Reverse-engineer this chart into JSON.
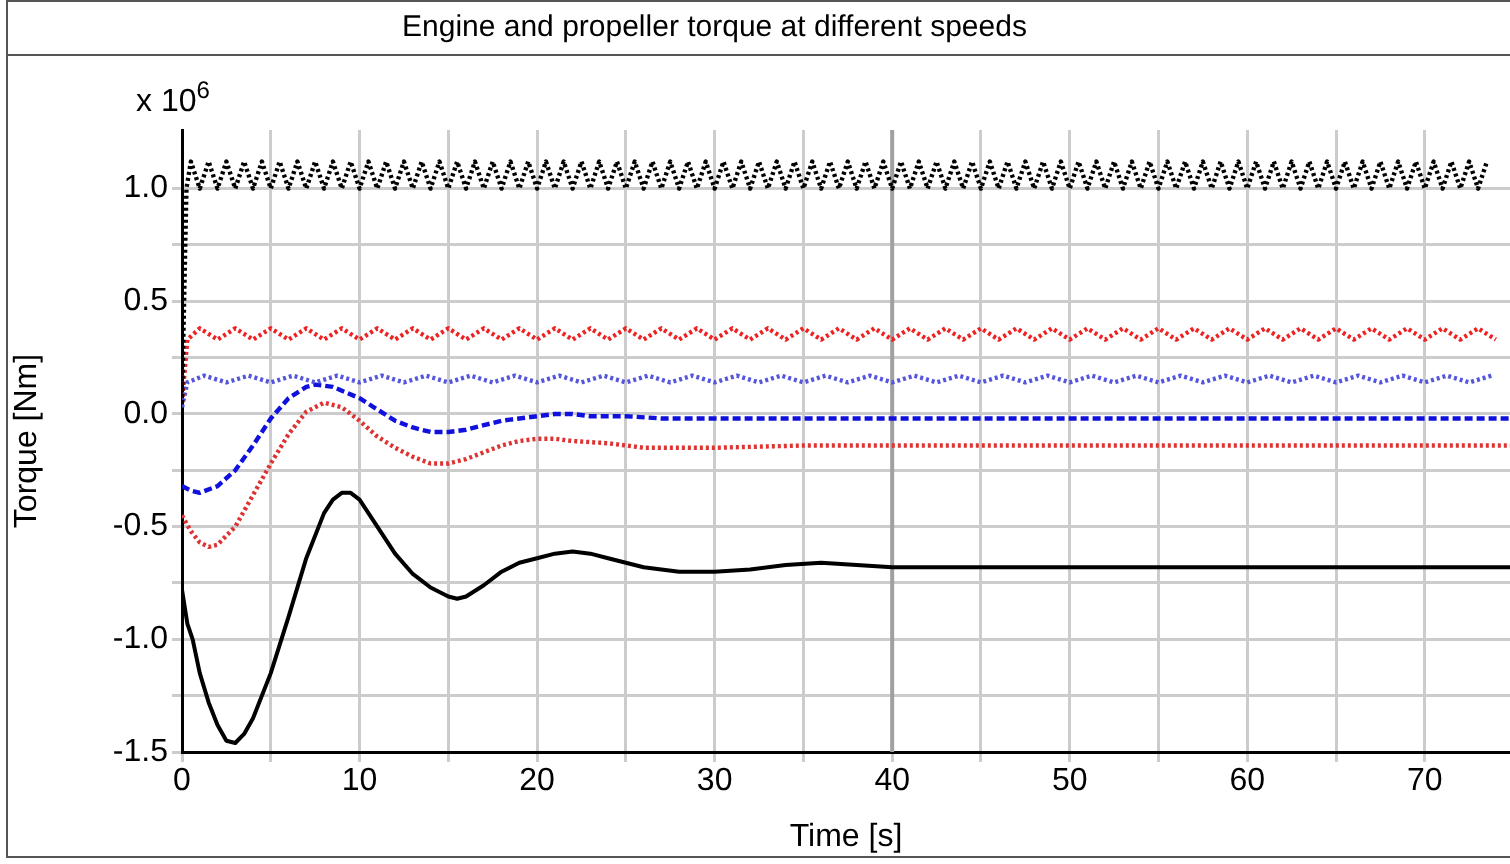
{
  "chart_data": {
    "type": "line",
    "title": "Engine and propeller torque at different speeds",
    "xlabel": "Time [s]",
    "ylabel": "Torque [Nm]",
    "annotations": [
      "x 10$^{6}$"
    ],
    "xlim": [
      0,
      74.8
    ],
    "xticks": [
      0,
      {
        "value": 5,
        "label": null
      },
      10,
      {
        "value": 15,
        "label": null
      },
      20,
      {
        "value": 25,
        "label": null
      },
      30,
      {
        "value": 35,
        "label": null
      },
      40,
      {
        "value": 45,
        "label": null
      },
      50,
      {
        "value": 55,
        "label": null
      },
      60,
      {
        "value": 65,
        "label": null
      },
      70
    ],
    "ylim": [
      -1.5,
      1.26
    ],
    "yticks": [
      {
        "value": -1.5,
        "label": "-1.5"
      },
      {
        "value": -1.25,
        "label": null
      },
      {
        "value": -1.0,
        "label": "-1.0"
      },
      {
        "value": -0.75,
        "label": null
      },
      {
        "value": -0.5,
        "label": "-0.5"
      },
      {
        "value": -0.25,
        "label": null
      },
      {
        "value": 0,
        "label": "0.0"
      },
      {
        "value": 0.25,
        "label": null
      },
      {
        "value": 0.5,
        "label": "0.5"
      },
      {
        "value": 0.75,
        "label": null
      },
      {
        "value": 1.0,
        "label": "1.0"
      }
    ],
    "grid": true,
    "legend": false,
    "marker": "none",
    "ref_lines": [
      {
        "axis": "x",
        "value": 40,
        "color": "#a0a0a0"
      }
    ],
    "series": [
      {
        "color": "#000000",
        "line_style": "dotted",
        "x": [
          0,
          0.25,
          0.5,
          1,
          1.5,
          2,
          2.5,
          3,
          3.5,
          4,
          4.5,
          5,
          5.5,
          6,
          6.5,
          7,
          7.5,
          8,
          8.5,
          9,
          9.5,
          10,
          10.5,
          11,
          11.5,
          12,
          12.5,
          13,
          13.5,
          14,
          14.5,
          15,
          15.5,
          16,
          16.5,
          17,
          17.5,
          18,
          18.5,
          19,
          19.5,
          20,
          20.5,
          21,
          21.5,
          22,
          22.5,
          23,
          23.5,
          24,
          24.5,
          25,
          25.5,
          26,
          26.5,
          27,
          27.5,
          28,
          28.5,
          29,
          29.5,
          30,
          30.5,
          31,
          31.5,
          32,
          32.5,
          33,
          33.5,
          34,
          34.5,
          35,
          35.5,
          36,
          36.5,
          37,
          37.5,
          38,
          38.5,
          39,
          39.5,
          40,
          40.5,
          41,
          41.5,
          42,
          42.5,
          43,
          43.5,
          44,
          44.5,
          45,
          45.5,
          46,
          46.5,
          47,
          47.5,
          48,
          48.5,
          49,
          49.5,
          50,
          50.5,
          51,
          51.5,
          52,
          52.5,
          53,
          53.5,
          54,
          54.5,
          55,
          55.5,
          56,
          56.5,
          57,
          57.5,
          58,
          58.5,
          59,
          59.5,
          60,
          60.5,
          61,
          61.5,
          62,
          62.5,
          63,
          63.5,
          64,
          64.5,
          65,
          65.5,
          66,
          66.5,
          67,
          67.5,
          68,
          68.5,
          69,
          69.5,
          70,
          70.5,
          71,
          71.5,
          72,
          72.5,
          73,
          73.5
        ],
        "values": [
          0.05,
          1.0,
          1.12,
          1.0,
          1.12,
          1.0,
          1.12,
          1.0,
          1.12,
          1.0,
          1.12,
          1.0,
          1.12,
          1.0,
          1.12,
          1.0,
          1.12,
          1.0,
          1.12,
          1.0,
          1.12,
          1.0,
          1.12,
          1.0,
          1.12,
          1.0,
          1.12,
          1.0,
          1.12,
          1.0,
          1.12,
          1.0,
          1.12,
          1.0,
          1.12,
          1.0,
          1.12,
          1.0,
          1.12,
          1.0,
          1.12,
          1.0,
          1.12,
          1.0,
          1.12,
          1.0,
          1.12,
          1.0,
          1.12,
          1.0,
          1.12,
          1.0,
          1.12,
          1.0,
          1.12,
          1.0,
          1.12,
          1.0,
          1.12,
          1.0,
          1.12,
          1.0,
          1.12,
          1.0,
          1.12,
          1.0,
          1.12,
          1.0,
          1.12,
          1.0,
          1.12,
          1.0,
          1.12,
          1.0,
          1.12,
          1.0,
          1.12,
          1.0,
          1.12,
          1.0,
          1.12,
          1.0,
          1.12,
          1.0,
          1.12,
          1.0,
          1.12,
          1.0,
          1.12,
          1.0,
          1.12,
          1.0,
          1.12,
          1.0,
          1.12,
          1.0,
          1.12,
          1.0,
          1.12,
          1.0,
          1.12,
          1.0,
          1.12,
          1.0,
          1.12,
          1.0,
          1.12,
          1.0,
          1.12,
          1.0,
          1.12,
          1.0,
          1.12,
          1.0,
          1.12,
          1.0,
          1.12,
          1.0,
          1.12,
          1.0,
          1.12,
          1.0,
          1.12,
          1.0,
          1.12,
          1.0,
          1.12,
          1.0,
          1.12,
          1.0,
          1.12,
          1.0,
          1.12,
          1.0,
          1.12,
          1.0,
          1.12,
          1.0,
          1.12,
          1.0,
          1.12,
          1.0,
          1.12,
          1.0,
          1.12,
          1.0,
          1.12,
          1.0,
          1.12
        ]
      },
      {
        "color": "#ee2222",
        "line_style": "dotted",
        "x": [
          0,
          0.3,
          1,
          2,
          3,
          4,
          5,
          6,
          7,
          8,
          9,
          10,
          11,
          12,
          13,
          14,
          15,
          16,
          17,
          18,
          19,
          20,
          21,
          22,
          23,
          24,
          25,
          26,
          27,
          28,
          29,
          30,
          31,
          32,
          33,
          34,
          35,
          36,
          37,
          38,
          39,
          40,
          41,
          42,
          43,
          44,
          45,
          46,
          47,
          48,
          49,
          50,
          51,
          52,
          53,
          54,
          55,
          56,
          57,
          58,
          59,
          60,
          61,
          62,
          63,
          64,
          65,
          66,
          67,
          68,
          69,
          70,
          71,
          72,
          73,
          74
        ],
        "values": [
          0.05,
          0.33,
          0.38,
          0.33,
          0.38,
          0.33,
          0.38,
          0.33,
          0.38,
          0.33,
          0.38,
          0.33,
          0.38,
          0.33,
          0.38,
          0.33,
          0.38,
          0.33,
          0.38,
          0.33,
          0.38,
          0.33,
          0.38,
          0.33,
          0.38,
          0.33,
          0.38,
          0.33,
          0.38,
          0.33,
          0.38,
          0.33,
          0.38,
          0.33,
          0.38,
          0.33,
          0.38,
          0.33,
          0.38,
          0.33,
          0.38,
          0.33,
          0.38,
          0.33,
          0.38,
          0.33,
          0.38,
          0.33,
          0.38,
          0.33,
          0.38,
          0.33,
          0.38,
          0.33,
          0.38,
          0.33,
          0.38,
          0.33,
          0.38,
          0.33,
          0.38,
          0.33,
          0.38,
          0.33,
          0.38,
          0.33,
          0.38,
          0.33,
          0.38,
          0.33,
          0.38,
          0.33,
          0.38,
          0.33,
          0.38,
          0.33
        ]
      },
      {
        "color": "#5555dd",
        "line_style": "dotted",
        "x": [
          0,
          0.3,
          1.25,
          2.5,
          3.75,
          5,
          6.25,
          7.5,
          8.75,
          10,
          11.25,
          12.5,
          13.75,
          15,
          16.25,
          17.5,
          18.75,
          20,
          21.25,
          22.5,
          23.75,
          25,
          26.25,
          27.5,
          28.75,
          30,
          31.25,
          32.5,
          33.75,
          35,
          36.25,
          37.5,
          38.75,
          40,
          41.25,
          42.5,
          43.75,
          45,
          46.25,
          47.5,
          48.75,
          50,
          51.25,
          52.5,
          53.75,
          55,
          56.25,
          57.5,
          58.75,
          60,
          61.25,
          62.5,
          63.75,
          65,
          66.25,
          67.5,
          68.75,
          70,
          71.25,
          72.5,
          73.75
        ],
        "values": [
          0.03,
          0.14,
          0.17,
          0.14,
          0.17,
          0.14,
          0.17,
          0.14,
          0.17,
          0.14,
          0.17,
          0.14,
          0.17,
          0.14,
          0.17,
          0.14,
          0.17,
          0.14,
          0.17,
          0.14,
          0.17,
          0.14,
          0.17,
          0.14,
          0.17,
          0.14,
          0.17,
          0.14,
          0.17,
          0.14,
          0.17,
          0.14,
          0.17,
          0.14,
          0.17,
          0.14,
          0.17,
          0.14,
          0.17,
          0.14,
          0.17,
          0.14,
          0.17,
          0.14,
          0.17,
          0.14,
          0.17,
          0.14,
          0.17,
          0.14,
          0.17,
          0.14,
          0.17,
          0.14,
          0.17,
          0.14,
          0.17,
          0.14,
          0.17,
          0.14,
          0.17
        ]
      },
      {
        "color": "#1111dd",
        "line_style": "dashed",
        "x": [
          0,
          0.5,
          1,
          2,
          3,
          4,
          5,
          6,
          7,
          7.5,
          8.5,
          10,
          11,
          12,
          13,
          14,
          15,
          16,
          17,
          18,
          19,
          20,
          21,
          22,
          23,
          25,
          27,
          28,
          30,
          35,
          40,
          45,
          50,
          55,
          60,
          65,
          70,
          74.8
        ],
        "values": [
          -0.32,
          -0.34,
          -0.35,
          -0.32,
          -0.25,
          -0.14,
          -0.02,
          0.07,
          0.12,
          0.13,
          0.12,
          0.07,
          0.02,
          -0.03,
          -0.06,
          -0.08,
          -0.08,
          -0.07,
          -0.05,
          -0.03,
          -0.02,
          -0.01,
          0.0,
          0.0,
          -0.01,
          -0.01,
          -0.02,
          -0.02,
          -0.02,
          -0.02,
          -0.02,
          -0.02,
          -0.02,
          -0.02,
          -0.02,
          -0.02,
          -0.02,
          -0.02
        ]
      },
      {
        "color": "#dd3333",
        "line_style": "dotted",
        "x": [
          0,
          0.5,
          1,
          1.5,
          2,
          3,
          4,
          5,
          6,
          7,
          8,
          9,
          10,
          11,
          12,
          13,
          14,
          15,
          16,
          17,
          18,
          19,
          20,
          21,
          22,
          24,
          26,
          28,
          30,
          35,
          40,
          45,
          50,
          55,
          60,
          65,
          70,
          74.8
        ],
        "values": [
          -0.45,
          -0.52,
          -0.57,
          -0.59,
          -0.58,
          -0.5,
          -0.36,
          -0.22,
          -0.09,
          0.01,
          0.05,
          0.03,
          -0.03,
          -0.1,
          -0.15,
          -0.19,
          -0.22,
          -0.22,
          -0.2,
          -0.17,
          -0.14,
          -0.12,
          -0.11,
          -0.11,
          -0.12,
          -0.13,
          -0.15,
          -0.15,
          -0.15,
          -0.14,
          -0.14,
          -0.14,
          -0.14,
          -0.14,
          -0.14,
          -0.14,
          -0.14,
          -0.14
        ]
      },
      {
        "color": "#000000",
        "line_style": "solid",
        "x": [
          0,
          0.3,
          0.6,
          1,
          1.5,
          2,
          2.5,
          3,
          3.5,
          4,
          5,
          6,
          7,
          8,
          8.5,
          9,
          9.5,
          10,
          11,
          12,
          13,
          14,
          15,
          15.5,
          16,
          17,
          18,
          19,
          20,
          21,
          22,
          23,
          24,
          25,
          26,
          27,
          28,
          29,
          30,
          32,
          34,
          36,
          38,
          40,
          45,
          50,
          55,
          60,
          65,
          70,
          74.8
        ],
        "values": [
          -0.78,
          -0.93,
          -1.0,
          -1.15,
          -1.28,
          -1.38,
          -1.45,
          -1.46,
          -1.42,
          -1.35,
          -1.15,
          -0.9,
          -0.64,
          -0.44,
          -0.38,
          -0.35,
          -0.35,
          -0.38,
          -0.5,
          -0.62,
          -0.71,
          -0.77,
          -0.81,
          -0.82,
          -0.81,
          -0.76,
          -0.7,
          -0.66,
          -0.64,
          -0.62,
          -0.61,
          -0.62,
          -0.64,
          -0.66,
          -0.68,
          -0.69,
          -0.7,
          -0.7,
          -0.7,
          -0.69,
          -0.67,
          -0.66,
          -0.67,
          -0.68,
          -0.68,
          -0.68,
          -0.68,
          -0.68,
          -0.68,
          -0.68,
          -0.68
        ]
      }
    ]
  }
}
